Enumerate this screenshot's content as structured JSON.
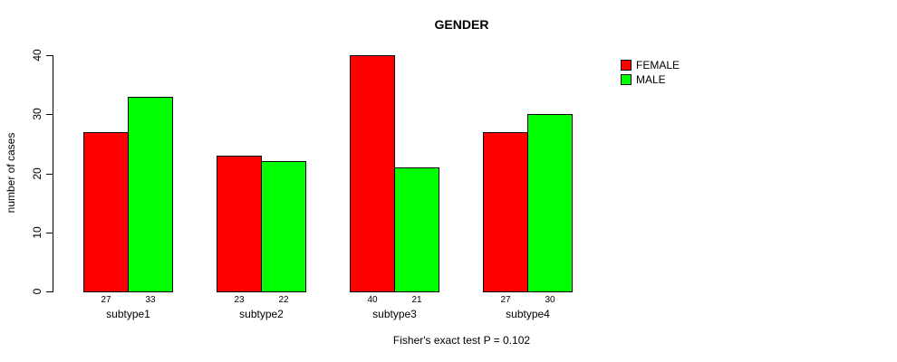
{
  "chart_data": {
    "type": "bar",
    "title": "GENDER",
    "xlabel": "",
    "ylabel": "number of cases",
    "categories": [
      "subtype1",
      "subtype2",
      "subtype3",
      "subtype4"
    ],
    "series": [
      {
        "name": "FEMALE",
        "color": "#ff0000",
        "values": [
          27,
          23,
          40,
          27
        ]
      },
      {
        "name": "MALE",
        "color": "#00ff00",
        "values": [
          33,
          22,
          21,
          30
        ]
      }
    ],
    "ylim": [
      0,
      40
    ],
    "yticks": [
      0,
      10,
      20,
      30,
      40
    ],
    "grid": false,
    "legend_position": "top-right",
    "bar_value_labels_shown": true,
    "caption": "Fisher's exact test P = 0.102",
    "background_color": "#ffffff",
    "bar_border_color": "#000000"
  }
}
